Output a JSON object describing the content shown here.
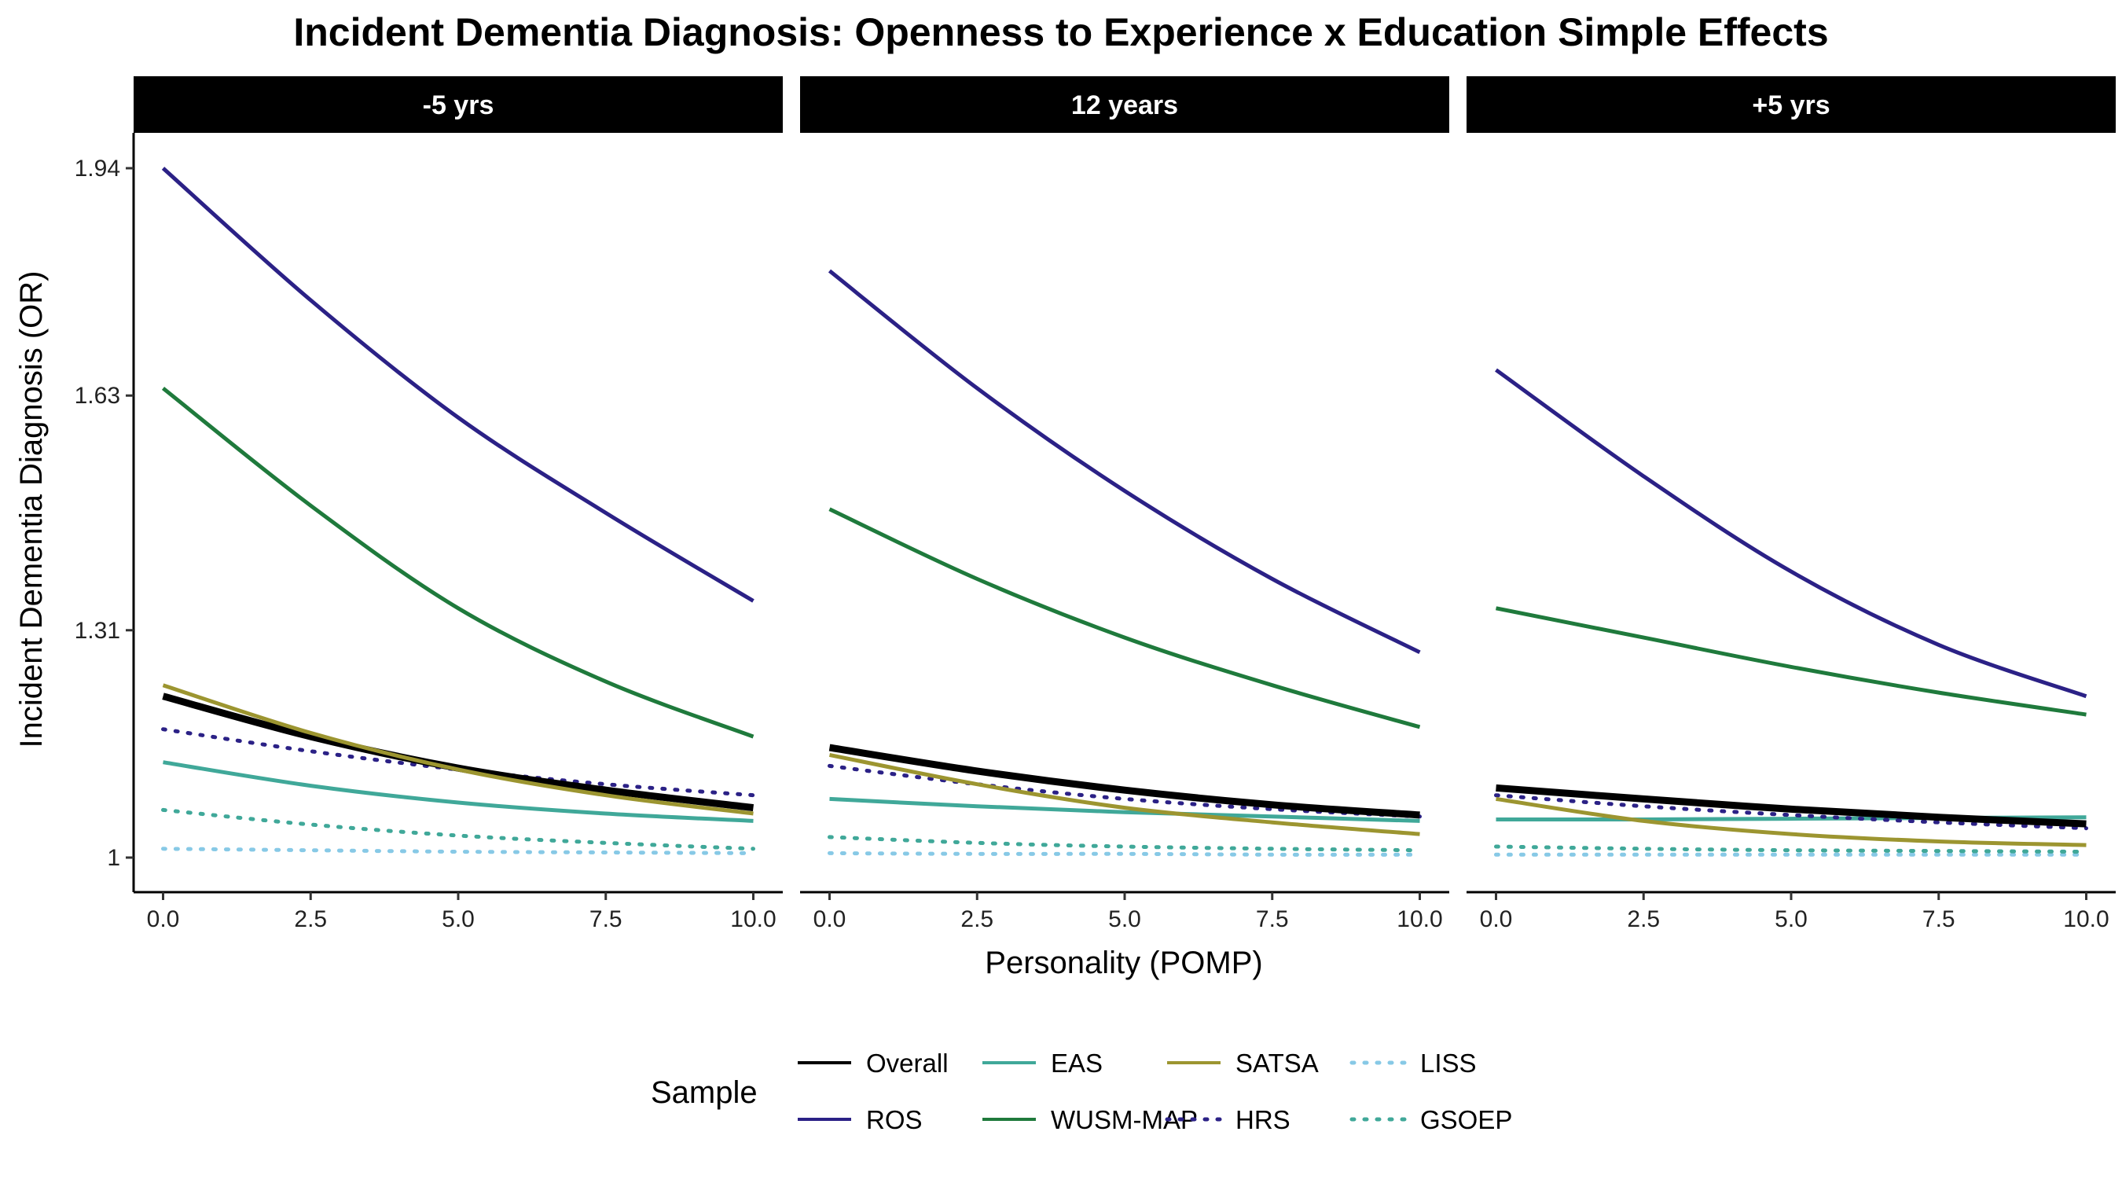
{
  "chart_data": {
    "type": "line",
    "title": "Incident Dementia Diagnosis: Openness to Experience x Education Simple Effects",
    "xlabel": "Personality (POMP)",
    "ylabel": "Incident Dementia Diagnosis (OR)",
    "xlim": [
      0,
      10
    ],
    "ylim": [
      1,
      1.94
    ],
    "x_ticks": [
      "0.0",
      "2.5",
      "5.0",
      "7.5",
      "10.0"
    ],
    "y_ticks": [
      "1",
      "1.31",
      "1.63",
      "1.94"
    ],
    "x": [
      0,
      2.5,
      5,
      7.5,
      10
    ],
    "legend": {
      "title": "Sample",
      "placement": "bottom"
    },
    "grid": false,
    "series_styles": [
      {
        "name": "Overall",
        "color": "#000000",
        "dash": "solid",
        "thick": true
      },
      {
        "name": "ROS",
        "color": "#2b2186",
        "dash": "solid"
      },
      {
        "name": "EAS",
        "color": "#40a899",
        "dash": "solid"
      },
      {
        "name": "WUSM-MAP",
        "color": "#1f7a3c",
        "dash": "solid"
      },
      {
        "name": "SATSA",
        "color": "#9c9530",
        "dash": "solid"
      },
      {
        "name": "HRS",
        "color": "#2b2186",
        "dash": "dotted"
      },
      {
        "name": "LISS",
        "color": "#87c9e6",
        "dash": "dotted"
      },
      {
        "name": "GSOEP",
        "color": "#40a899",
        "dash": "dotted"
      }
    ],
    "panels": [
      {
        "label": "-5 yrs",
        "series": [
          {
            "name": "Overall",
            "values": [
              1.22,
              1.165,
              1.122,
              1.092,
              1.068
            ]
          },
          {
            "name": "ROS",
            "values": [
              1.94,
              1.76,
              1.6,
              1.47,
              1.35
            ]
          },
          {
            "name": "EAS",
            "values": [
              1.13,
              1.098,
              1.075,
              1.06,
              1.05
            ]
          },
          {
            "name": "WUSM-MAP",
            "values": [
              1.64,
              1.48,
              1.34,
              1.24,
              1.165
            ]
          },
          {
            "name": "SATSA",
            "values": [
              1.235,
              1.17,
              1.12,
              1.085,
              1.06
            ]
          },
          {
            "name": "HRS",
            "values": [
              1.175,
              1.145,
              1.12,
              1.1,
              1.085
            ]
          },
          {
            "name": "LISS",
            "values": [
              1.012,
              1.01,
              1.008,
              1.007,
              1.006
            ]
          },
          {
            "name": "GSOEP",
            "values": [
              1.065,
              1.045,
              1.03,
              1.02,
              1.012
            ]
          }
        ]
      },
      {
        "label": "12 years",
        "series": [
          {
            "name": "Overall",
            "values": [
              1.15,
              1.118,
              1.092,
              1.072,
              1.058
            ]
          },
          {
            "name": "ROS",
            "values": [
              1.8,
              1.64,
              1.5,
              1.38,
              1.28
            ]
          },
          {
            "name": "EAS",
            "values": [
              1.08,
              1.07,
              1.062,
              1.056,
              1.05
            ]
          },
          {
            "name": "WUSM-MAP",
            "values": [
              1.475,
              1.38,
              1.3,
              1.235,
              1.178
            ]
          },
          {
            "name": "SATSA",
            "values": [
              1.14,
              1.1,
              1.068,
              1.048,
              1.032
            ]
          },
          {
            "name": "HRS",
            "values": [
              1.125,
              1.1,
              1.08,
              1.066,
              1.056
            ]
          },
          {
            "name": "LISS",
            "values": [
              1.006,
              1.005,
              1.005,
              1.004,
              1.004
            ]
          },
          {
            "name": "GSOEP",
            "values": [
              1.028,
              1.02,
              1.015,
              1.012,
              1.01
            ]
          }
        ]
      },
      {
        "label": "+5 yrs",
        "series": [
          {
            "name": "Overall",
            "values": [
              1.095,
              1.08,
              1.066,
              1.055,
              1.046
            ]
          },
          {
            "name": "ROS",
            "values": [
              1.665,
              1.52,
              1.39,
              1.29,
              1.22
            ]
          },
          {
            "name": "EAS",
            "values": [
              1.052,
              1.052,
              1.053,
              1.054,
              1.055
            ]
          },
          {
            "name": "WUSM-MAP",
            "values": [
              1.34,
              1.3,
              1.26,
              1.225,
              1.195
            ]
          },
          {
            "name": "SATSA",
            "values": [
              1.08,
              1.05,
              1.032,
              1.022,
              1.017
            ]
          },
          {
            "name": "HRS",
            "values": [
              1.085,
              1.07,
              1.058,
              1.048,
              1.04
            ]
          },
          {
            "name": "LISS",
            "values": [
              1.004,
              1.004,
              1.004,
              1.004,
              1.004
            ]
          },
          {
            "name": "GSOEP",
            "values": [
              1.015,
              1.012,
              1.01,
              1.009,
              1.008
            ]
          }
        ]
      }
    ]
  }
}
